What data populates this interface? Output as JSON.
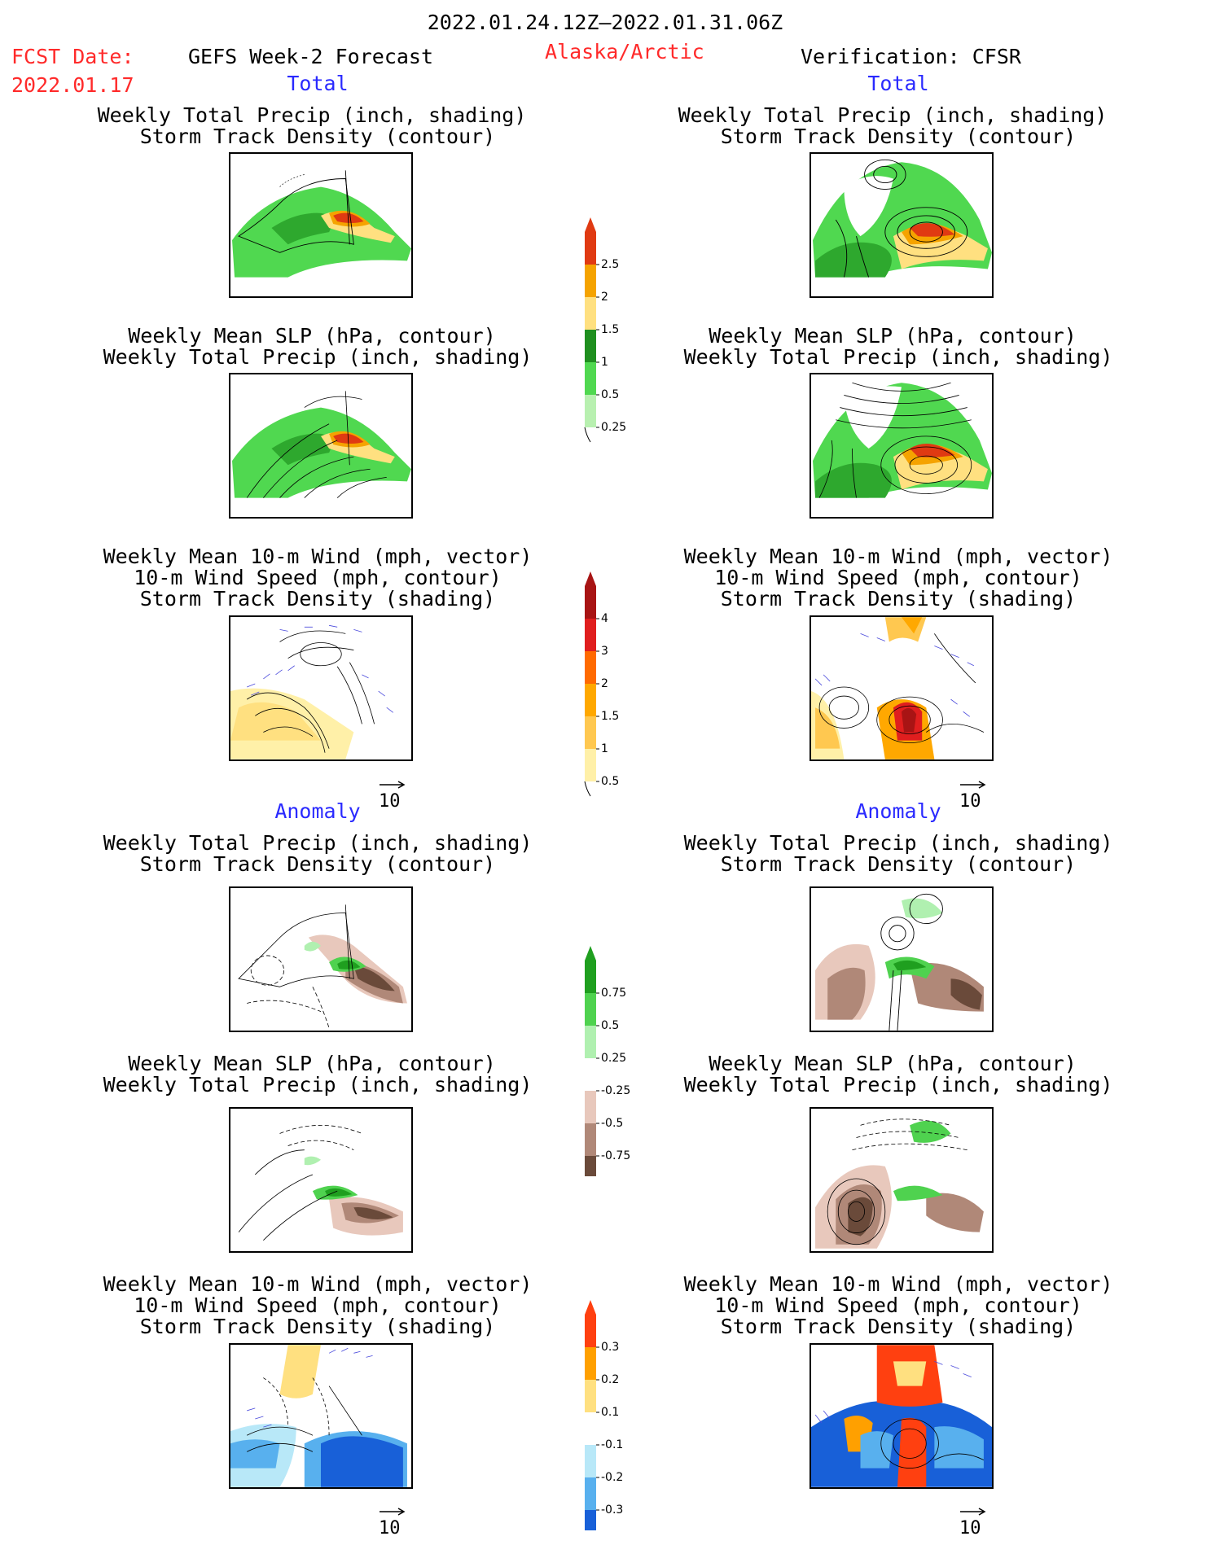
{
  "header": {
    "period": "2022.01.24.12Z–2022.01.31.06Z",
    "fcst_label": "FCST Date:",
    "fcst_date": "2022.01.17",
    "model": "GEFS Week-2 Forecast",
    "region": "Alaska/Arctic",
    "verification": "Verification: CFSR"
  },
  "sections": {
    "total": "Total",
    "anomaly": "Anomaly"
  },
  "titles": {
    "precip_track": [
      "Weekly Total Precip (inch, shading)",
      "Storm Track Density (contour)"
    ],
    "slp_precip": [
      "Weekly Mean SLP (hPa, contour)",
      "Weekly Total Precip (inch, shading)"
    ],
    "wind_track": [
      "Weekly Mean 10-m Wind (mph, vector)",
      "10-m Wind Speed (mph, contour)",
      "Storm Track Density (shading)"
    ]
  },
  "vector_ref": "10",
  "colorbars": [
    {
      "id": "precip_total",
      "labels": [
        "2.5",
        "2",
        "1.5",
        "1",
        "0.5",
        "0.25"
      ],
      "colors": [
        "#e03a12",
        "#f5a300",
        "#ffe080",
        "#1f8f1f",
        "#50d850",
        "#b8f0b0"
      ]
    },
    {
      "id": "track_total",
      "labels": [
        "4",
        "3",
        "2",
        "1.5",
        "1",
        "0.5"
      ],
      "colors": [
        "#a81414",
        "#e01e1e",
        "#ff6a00",
        "#ffa800",
        "#ffc850",
        "#fff0a8"
      ]
    },
    {
      "id": "precip_anom",
      "labels": [
        "0.75",
        "0.5",
        "0.25",
        "-0.25",
        "-0.5",
        "-0.75"
      ],
      "colors": [
        "#1f9f1f",
        "#4fd24f",
        "#b0f0b0",
        "#ffffff",
        "#e8c8bc",
        "#b08878",
        "#6a4a3a"
      ]
    },
    {
      "id": "track_anom",
      "labels": [
        "0.3",
        "0.2",
        "0.1",
        "-0.1",
        "-0.2",
        "-0.3"
      ],
      "colors": [
        "#ff4010",
        "#ffa000",
        "#ffe080",
        "#ffffff",
        "#b8e8f8",
        "#58b0ee",
        "#1860d8"
      ]
    }
  ]
}
